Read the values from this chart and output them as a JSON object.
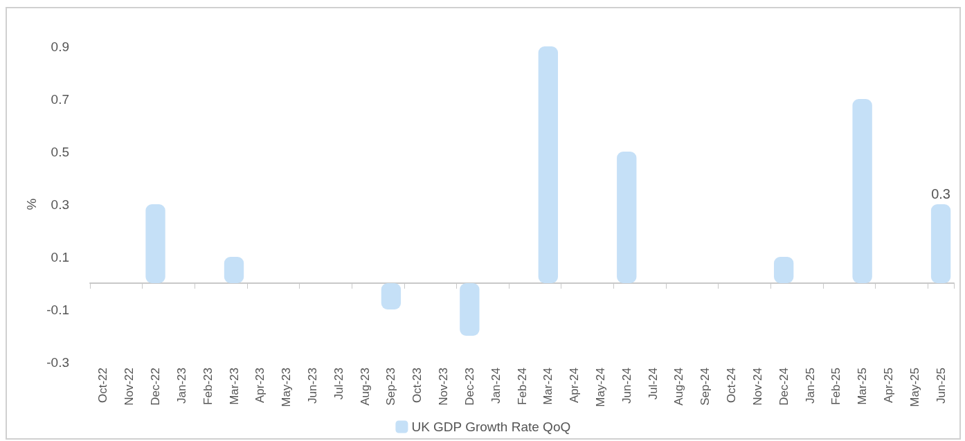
{
  "chart_data": {
    "type": "bar",
    "ylabel": "%",
    "categories": [
      "Oct-22",
      "Nov-22",
      "Dec-22",
      "Jan-23",
      "Feb-23",
      "Mar-23",
      "Apr-23",
      "May-23",
      "Jun-23",
      "Jul-23",
      "Aug-23",
      "Sep-23",
      "Oct-23",
      "Nov-23",
      "Dec-23",
      "Jan-24",
      "Feb-24",
      "Mar-24",
      "Apr-24",
      "May-24",
      "Jun-24",
      "Jul-24",
      "Aug-24",
      "Sep-24",
      "Oct-24",
      "Nov-24",
      "Dec-24",
      "Jan-25",
      "Feb-25",
      "Mar-25",
      "Apr-25",
      "May-25",
      "Jun-25"
    ],
    "series": [
      {
        "name": "UK GDP Growth Rate QoQ",
        "color": "#c5e0f7",
        "values": [
          null,
          null,
          0.3,
          null,
          null,
          0.1,
          null,
          null,
          null,
          null,
          null,
          -0.1,
          null,
          null,
          -0.2,
          null,
          null,
          0.9,
          null,
          null,
          0.5,
          null,
          null,
          null,
          null,
          null,
          0.1,
          null,
          null,
          0.7,
          null,
          null,
          0.3
        ],
        "value_labels": [
          null,
          null,
          null,
          null,
          null,
          null,
          null,
          null,
          null,
          null,
          null,
          null,
          null,
          null,
          null,
          null,
          null,
          null,
          null,
          null,
          null,
          null,
          null,
          null,
          null,
          null,
          null,
          null,
          null,
          null,
          null,
          null,
          "0.3"
        ]
      }
    ],
    "ylim": [
      -0.3,
      0.9
    ],
    "yticks": [
      -0.3,
      -0.1,
      0.1,
      0.3,
      0.5,
      0.7,
      0.9
    ],
    "grid": false,
    "legend": "bottom"
  }
}
